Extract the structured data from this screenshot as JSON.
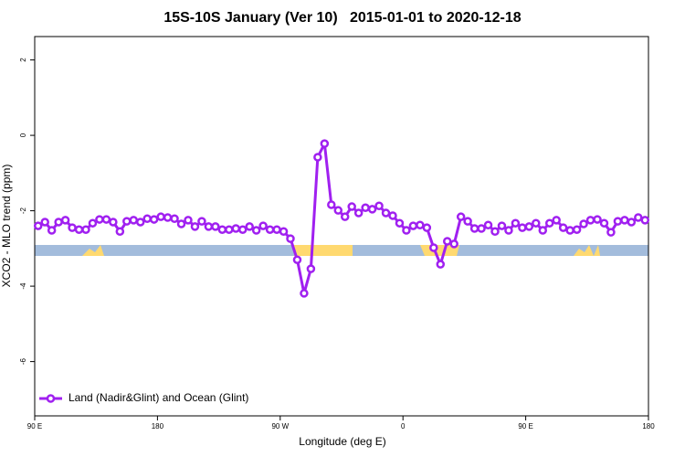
{
  "chart_data": {
    "type": "line",
    "title": "15S-10S January (Ver 10)   2015-01-01 to 2020-12-18",
    "x_label": "Longitude (deg E)",
    "y_label": "XCO2 - MLO trend (ppm)",
    "x": [
      92.5,
      97.5,
      102.5,
      107.5,
      112.5,
      117.5,
      122.5,
      127.5,
      132.5,
      137.5,
      142.5,
      147.5,
      152.5,
      157.5,
      162.5,
      167.5,
      172.5,
      177.5,
      182.5,
      187.5,
      192.5,
      197.5,
      202.5,
      207.5,
      212.5,
      217.5,
      222.5,
      227.5,
      232.5,
      237.5,
      242.5,
      247.5,
      252.5,
      257.5,
      262.5,
      267.5,
      272.5,
      277.5,
      282.5,
      287.5,
      292.5,
      297.5,
      302.5,
      307.5,
      312.5,
      317.5,
      322.5,
      327.5,
      332.5,
      337.5,
      342.5,
      347.5,
      352.5,
      357.5,
      362.5,
      367.5,
      372.5,
      377.5,
      382.5,
      387.5,
      392.5,
      397.5,
      402.5,
      407.5,
      412.5,
      417.5,
      422.5,
      427.5,
      432.5,
      437.5,
      442.5,
      447.5,
      452.5,
      457.5,
      462.5,
      467.5,
      472.5,
      477.5,
      482.5,
      487.5,
      492.5,
      497.5,
      502.5,
      507.5,
      512.5,
      517.5,
      522.5,
      527.5,
      532.5,
      537.5
    ],
    "series": [
      {
        "name": "Land (Nadir&Glint) and Ocean (Glint)",
        "color": "#a020f0",
        "values": [
          -2.4,
          -2.3,
          -2.52,
          -2.3,
          -2.25,
          -2.45,
          -2.5,
          -2.5,
          -2.33,
          -2.23,
          -2.23,
          -2.3,
          -2.55,
          -2.28,
          -2.25,
          -2.3,
          -2.21,
          -2.23,
          -2.16,
          -2.18,
          -2.21,
          -2.35,
          -2.25,
          -2.42,
          -2.28,
          -2.42,
          -2.42,
          -2.5,
          -2.5,
          -2.47,
          -2.5,
          -2.42,
          -2.52,
          -2.4,
          -2.5,
          -2.5,
          -2.55,
          -2.74,
          -3.3,
          -4.19,
          -3.54,
          -0.58,
          -0.22,
          -1.84,
          -1.99,
          -2.16,
          -1.89,
          -2.06,
          -1.92,
          -1.96,
          -1.87,
          -2.06,
          -2.13,
          -2.33,
          -2.52,
          -2.4,
          -2.38,
          -2.45,
          -2.98,
          -3.42,
          -2.81,
          -2.88,
          -2.16,
          -2.28,
          -2.47,
          -2.47,
          -2.38,
          -2.55,
          -2.4,
          -2.52,
          -2.33,
          -2.45,
          -2.42,
          -2.33,
          -2.52,
          -2.33,
          -2.25,
          -2.45,
          -2.52,
          -2.5,
          -2.35,
          -2.25,
          -2.23,
          -2.33,
          -2.57,
          -2.28,
          -2.25,
          -2.3,
          -2.18,
          -2.25
        ]
      }
    ],
    "xlim": [
      90,
      540
    ],
    "xticks": [
      {
        "value": 90,
        "label": "90 E"
      },
      180,
      {
        "value": 270,
        "label": "90 W"
      },
      {
        "value": 360,
        "label": "0"
      },
      {
        "value": 450,
        "label": "90 E"
      },
      {
        "value": 540,
        "label": "180"
      }
    ],
    "ylim": [
      -7.44,
      2.62
    ],
    "yticks": [
      2,
      0,
      -2,
      -4,
      -6
    ],
    "legend": "bottom-left"
  }
}
